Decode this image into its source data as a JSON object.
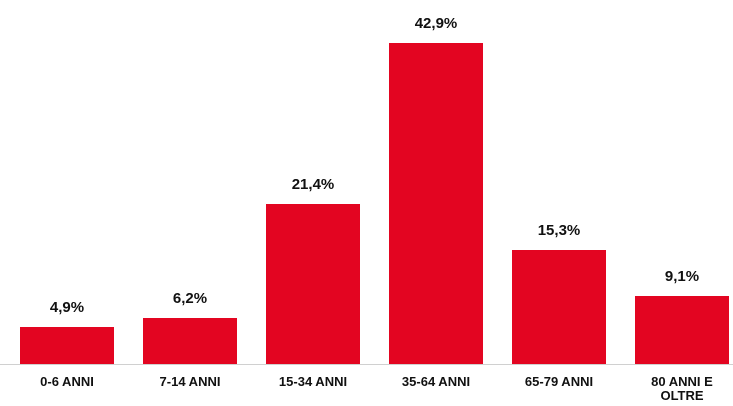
{
  "chart_data": {
    "type": "bar",
    "categories": [
      "0-6 ANNI",
      "7-14 ANNI",
      "15-34 ANNI",
      "35-64 ANNI",
      "65-79 ANNI",
      "80 ANNI E OLTRE"
    ],
    "values": [
      4.9,
      6.2,
      21.4,
      42.9,
      15.3,
      9.1
    ],
    "value_labels": [
      "4,9%",
      "6,2%",
      "21,4%",
      "42,9%",
      "15,3%",
      "9,1%"
    ],
    "color": "#e30521"
  }
}
